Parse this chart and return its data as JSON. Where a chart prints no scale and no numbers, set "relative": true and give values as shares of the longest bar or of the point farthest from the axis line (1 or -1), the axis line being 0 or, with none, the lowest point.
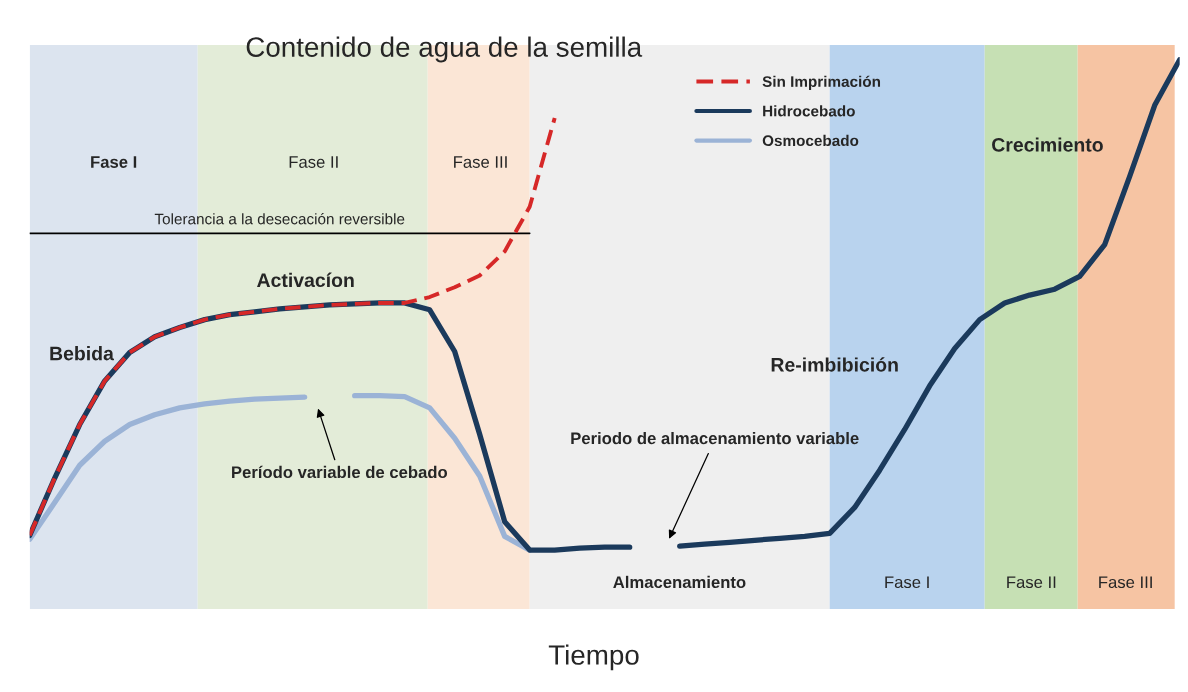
{
  "chart_data": {
    "type": "line",
    "relative": true,
    "title": "Contenido de agua de la semilla",
    "xlabel": "Tiempo",
    "categories": [
      null,
      null,
      null,
      null,
      null,
      null,
      null,
      null,
      null,
      null,
      null,
      null,
      null,
      null,
      null,
      null,
      null,
      null,
      null,
      null,
      null,
      null,
      null,
      null,
      null,
      null,
      null,
      null,
      null,
      null,
      null,
      null,
      null,
      null,
      null,
      null,
      null,
      null,
      null,
      null,
      null,
      null,
      null,
      null,
      null,
      null,
      null
    ],
    "series": [
      {
        "name": "Sin Imprimación",
        "color": "#d62828",
        "line_style": "dashed",
        "values": [
          0.03,
          0.147,
          0.256,
          0.345,
          0.403,
          0.435,
          0.454,
          0.47,
          0.48,
          0.486,
          0.492,
          0.496,
          0.5,
          0.502,
          0.504,
          0.504,
          0.516,
          0.536,
          0.56,
          0.609,
          0.7,
          0.881,
          null,
          null,
          null,
          null,
          null,
          null,
          null,
          null,
          null,
          null,
          null,
          null,
          null,
          null,
          null,
          null,
          null,
          null,
          null,
          null,
          null,
          null,
          null,
          null,
          null
        ]
      },
      {
        "name": "Hidrocebado",
        "color": "#1b3a5c",
        "line_style": "solid",
        "values": [
          0.03,
          0.147,
          0.256,
          0.345,
          0.403,
          0.435,
          0.454,
          0.47,
          0.48,
          0.486,
          0.492,
          0.496,
          0.5,
          0.502,
          0.504,
          0.504,
          0.49,
          0.405,
          0.236,
          0.058,
          0,
          0,
          0.004,
          0.006,
          0.006,
          null,
          0.008,
          0.012,
          0.016,
          0.02,
          0.024,
          0.028,
          0.034,
          0.087,
          0.163,
          0.246,
          0.335,
          0.411,
          0.47,
          0.504,
          0.52,
          0.532,
          0.558,
          0.623,
          0.762,
          0.907,
          1.0
        ]
      },
      {
        "name": "Osmocebado",
        "color": "#9bb3d6",
        "line_style": "solid",
        "values": [
          0.022,
          0.097,
          0.173,
          0.222,
          0.256,
          0.276,
          0.29,
          0.298,
          0.304,
          0.308,
          0.31,
          0.312,
          null,
          0.315,
          0.315,
          0.313,
          0.29,
          0.228,
          0.151,
          0.028,
          0,
          null,
          null,
          null,
          null,
          null,
          null,
          null,
          null,
          null,
          null,
          null,
          null,
          null,
          null,
          null,
          null,
          null,
          null,
          null,
          null,
          null,
          null,
          null,
          null,
          null,
          null
        ]
      }
    ],
    "ref_lines": [
      {
        "axis": "y",
        "value": 0.646,
        "label": "Tolerancia a la desecación reversible",
        "color": "#000000",
        "line_style": "solid"
      }
    ],
    "annotations": [
      "Bebida",
      "Activacíon",
      "Período variable de cebado",
      "Periodo de almacenamiento variable",
      "Re-imbibición",
      "Crecimiento",
      "Fase I",
      "Fase II",
      "Fase III",
      "Almacenamiento",
      "Fase I",
      "Fase II",
      "Fase III"
    ],
    "legend": "top"
  }
}
